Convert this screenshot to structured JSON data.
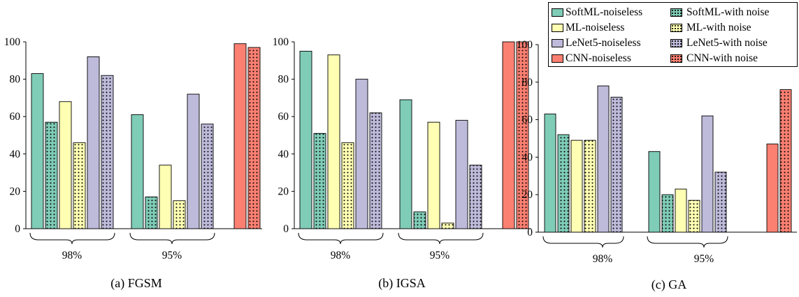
{
  "series_styles": [
    {
      "name": "SoftML-noiseless",
      "color": "#7fccb7",
      "dotted": false
    },
    {
      "name": "SoftML-with noise",
      "color": "#7fccb7",
      "dotted": true
    },
    {
      "name": "ML-noiseless",
      "color": "#ffffb3",
      "dotted": false
    },
    {
      "name": "ML-with noise",
      "color": "#ffffb3",
      "dotted": true
    },
    {
      "name": "LeNet5-noiseless",
      "color": "#bebada",
      "dotted": false
    },
    {
      "name": "LeNet5-with noise",
      "color": "#bebada",
      "dotted": true
    },
    {
      "name": "CNN-noiseless",
      "color": "#fb8072",
      "dotted": false
    },
    {
      "name": "CNN-with noise",
      "color": "#fb8072",
      "dotted": true
    }
  ],
  "legend": {
    "items": [
      {
        "label": "SoftML-noiseless",
        "color": "#7fccb7",
        "dotted": false
      },
      {
        "label": "SoftML-with noise",
        "color": "#7fccb7",
        "dotted": true
      },
      {
        "label": "ML-noiseless",
        "color": "#ffffb3",
        "dotted": false
      },
      {
        "label": "ML-with noise",
        "color": "#ffffb3",
        "dotted": true
      },
      {
        "label": "LeNet5-noiseless",
        "color": "#bebada",
        "dotted": false
      },
      {
        "label": "LeNet5-with noise",
        "color": "#bebada",
        "dotted": true
      },
      {
        "label": "CNN-noiseless",
        "color": "#fb8072",
        "dotted": false
      },
      {
        "label": "CNN-with noise",
        "color": "#fb8072",
        "dotted": true
      }
    ]
  },
  "chart_data": [
    {
      "type": "bar",
      "title": "(a) FGSM",
      "xlabel": "",
      "ylabel": "",
      "ylim": [
        0,
        100
      ],
      "yticks": [
        0,
        20,
        40,
        60,
        80,
        100
      ],
      "groups": [
        "98%",
        "95%"
      ],
      "series": [
        {
          "name": "SoftML-noiseless",
          "values": [
            83,
            61
          ]
        },
        {
          "name": "SoftML-with noise",
          "values": [
            57,
            17
          ]
        },
        {
          "name": "ML-noiseless",
          "values": [
            68,
            34
          ]
        },
        {
          "name": "ML-with noise",
          "values": [
            46,
            15
          ]
        },
        {
          "name": "LeNet5-noiseless",
          "values": [
            92,
            72
          ]
        },
        {
          "name": "LeNet5-with noise",
          "values": [
            82,
            56
          ]
        }
      ],
      "cnn": [
        {
          "name": "CNN-noiseless",
          "value": 99
        },
        {
          "name": "CNN-with noise",
          "value": 97
        }
      ]
    },
    {
      "type": "bar",
      "title": "(b) IGSA",
      "xlabel": "",
      "ylabel": "",
      "ylim": [
        0,
        100
      ],
      "yticks": [
        0,
        20,
        40,
        60,
        80,
        100
      ],
      "groups": [
        "98%",
        "95%"
      ],
      "series": [
        {
          "name": "SoftML-noiseless",
          "values": [
            95,
            69
          ]
        },
        {
          "name": "SoftML-with noise",
          "values": [
            51,
            9
          ]
        },
        {
          "name": "ML-noiseless",
          "values": [
            93,
            57
          ]
        },
        {
          "name": "ML-with noise",
          "values": [
            46,
            3
          ]
        },
        {
          "name": "LeNet5-noiseless",
          "values": [
            80,
            58
          ]
        },
        {
          "name": "LeNet5-with noise",
          "values": [
            62,
            34
          ]
        }
      ],
      "cnn": [
        {
          "name": "CNN-noiseless",
          "value": 100
        },
        {
          "name": "CNN-with noise",
          "value": 100
        }
      ]
    },
    {
      "type": "bar",
      "title": "(c) GA",
      "xlabel": "",
      "ylabel": "",
      "ylim": [
        0,
        100
      ],
      "yticks": [
        0,
        20,
        40,
        60,
        80,
        100
      ],
      "groups": [
        "98%",
        "95%"
      ],
      "series": [
        {
          "name": "SoftML-noiseless",
          "values": [
            63,
            43
          ]
        },
        {
          "name": "SoftML-with noise",
          "values": [
            52,
            20
          ]
        },
        {
          "name": "ML-noiseless",
          "values": [
            49,
            23
          ]
        },
        {
          "name": "ML-with noise",
          "values": [
            49,
            17
          ]
        },
        {
          "name": "LeNet5-noiseless",
          "values": [
            78,
            62
          ]
        },
        {
          "name": "LeNet5-with noise",
          "values": [
            72,
            32
          ]
        }
      ],
      "cnn": [
        {
          "name": "CNN-noiseless",
          "value": 47
        },
        {
          "name": "CNN-with noise",
          "value": 76
        }
      ]
    }
  ]
}
